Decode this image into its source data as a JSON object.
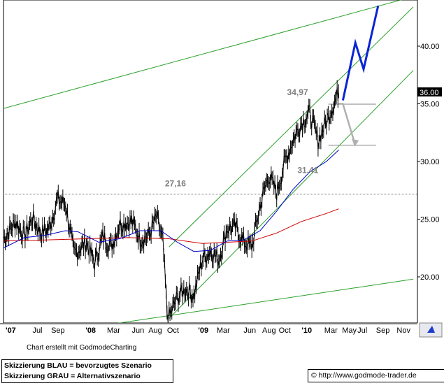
{
  "chart_data": {
    "type": "line",
    "x_tick_labels": [
      "'07",
      "Jul",
      "Sep",
      "'08",
      "Mar",
      "Jun",
      "Aug",
      "Oct",
      "'09",
      "Mar",
      "Jun",
      "Aug",
      "Oct",
      "'10",
      "Mar",
      "May",
      "Jul",
      "Sep",
      "Nov"
    ],
    "y_tick_labels": [
      "20.00",
      "25.00",
      "30.00",
      "35.00",
      "40.00"
    ],
    "ylim": [
      16,
      44
    ],
    "last_price_label": "36.00",
    "levels": [
      {
        "label": "34,97",
        "value": 34.97
      },
      {
        "label": "31,41",
        "value": 31.41
      },
      {
        "label": "27,16",
        "value": 27.16
      }
    ],
    "colors": {
      "price": "#000000",
      "ma_short": "#0000cc",
      "ma_long": "#cc0000",
      "channel": "#2ca02c",
      "scenario_blue": "#0a24d6",
      "scenario_grey": "#b0b0b0",
      "level_line": "#808080"
    },
    "price_keypoints": [
      {
        "x": 0,
        "y": 23.3
      },
      {
        "x": 0.03,
        "y": 24.8
      },
      {
        "x": 0.05,
        "y": 23.5
      },
      {
        "x": 0.07,
        "y": 25.1
      },
      {
        "x": 0.09,
        "y": 23.8
      },
      {
        "x": 0.11,
        "y": 24.2
      },
      {
        "x": 0.13,
        "y": 26.7
      },
      {
        "x": 0.15,
        "y": 26.3
      },
      {
        "x": 0.17,
        "y": 22.0
      },
      {
        "x": 0.2,
        "y": 23.0
      },
      {
        "x": 0.22,
        "y": 21.2
      },
      {
        "x": 0.24,
        "y": 23.5
      },
      {
        "x": 0.26,
        "y": 22.6
      },
      {
        "x": 0.28,
        "y": 24.6
      },
      {
        "x": 0.31,
        "y": 24.8
      },
      {
        "x": 0.33,
        "y": 23.3
      },
      {
        "x": 0.35,
        "y": 23.5
      },
      {
        "x": 0.37,
        "y": 25.2
      },
      {
        "x": 0.385,
        "y": 23.0
      },
      {
        "x": 0.395,
        "y": 17.0
      },
      {
        "x": 0.4,
        "y": 16.5
      },
      {
        "x": 0.42,
        "y": 18.2
      },
      {
        "x": 0.44,
        "y": 19.0
      },
      {
        "x": 0.46,
        "y": 18.4
      },
      {
        "x": 0.48,
        "y": 21.5
      },
      {
        "x": 0.5,
        "y": 22.3
      },
      {
        "x": 0.52,
        "y": 21.5
      },
      {
        "x": 0.54,
        "y": 24.2
      },
      {
        "x": 0.56,
        "y": 24.3
      },
      {
        "x": 0.58,
        "y": 23.0
      },
      {
        "x": 0.6,
        "y": 22.6
      },
      {
        "x": 0.62,
        "y": 26.2
      },
      {
        "x": 0.64,
        "y": 28.8
      },
      {
        "x": 0.66,
        "y": 27.3
      },
      {
        "x": 0.68,
        "y": 30.0
      },
      {
        "x": 0.7,
        "y": 31.9
      },
      {
        "x": 0.72,
        "y": 33.4
      },
      {
        "x": 0.74,
        "y": 34.2
      },
      {
        "x": 0.76,
        "y": 31.8
      },
      {
        "x": 0.78,
        "y": 33.5
      },
      {
        "x": 0.8,
        "y": 35.2
      },
      {
        "x": 0.81,
        "y": 36.1
      }
    ],
    "ma_short_keypoints": [
      {
        "x": 0,
        "y": 22.5
      },
      {
        "x": 0.05,
        "y": 23.4
      },
      {
        "x": 0.1,
        "y": 23.6
      },
      {
        "x": 0.15,
        "y": 24.0
      },
      {
        "x": 0.18,
        "y": 23.9
      },
      {
        "x": 0.23,
        "y": 23.0
      },
      {
        "x": 0.28,
        "y": 23.3
      },
      {
        "x": 0.33,
        "y": 24.0
      },
      {
        "x": 0.38,
        "y": 24.0
      },
      {
        "x": 0.42,
        "y": 23.0
      },
      {
        "x": 0.46,
        "y": 22.2
      },
      {
        "x": 0.5,
        "y": 22.3
      },
      {
        "x": 0.54,
        "y": 23.1
      },
      {
        "x": 0.58,
        "y": 23.2
      },
      {
        "x": 0.62,
        "y": 24.0
      },
      {
        "x": 0.66,
        "y": 25.7
      },
      {
        "x": 0.7,
        "y": 27.6
      },
      {
        "x": 0.74,
        "y": 29.1
      },
      {
        "x": 0.78,
        "y": 30.0
      },
      {
        "x": 0.81,
        "y": 31.0
      }
    ],
    "ma_long_keypoints": [
      {
        "x": 0,
        "y": 23.1
      },
      {
        "x": 0.1,
        "y": 23.2
      },
      {
        "x": 0.2,
        "y": 23.3
      },
      {
        "x": 0.3,
        "y": 23.4
      },
      {
        "x": 0.4,
        "y": 23.3
      },
      {
        "x": 0.48,
        "y": 22.9
      },
      {
        "x": 0.54,
        "y": 23.0
      },
      {
        "x": 0.6,
        "y": 23.1
      },
      {
        "x": 0.66,
        "y": 23.8
      },
      {
        "x": 0.72,
        "y": 24.8
      },
      {
        "x": 0.78,
        "y": 25.5
      },
      {
        "x": 0.81,
        "y": 25.9
      }
    ],
    "scenario_blue_keypoints": [
      {
        "x": 0.82,
        "y": 35.3
      },
      {
        "x": 0.85,
        "y": 40.3
      },
      {
        "x": 0.87,
        "y": 38.0
      },
      {
        "x": 0.905,
        "y": 43.5
      }
    ],
    "scenario_grey_keypoints": [
      {
        "x": 0.81,
        "y": 35.0
      },
      {
        "x": 0.82,
        "y": 35.0
      },
      {
        "x": 0.85,
        "y": 31.4
      }
    ],
    "channel_lines": [
      [
        {
          "x": 0.0,
          "y": 34.6
        },
        {
          "x": 0.99,
          "y": 44.3
        }
      ],
      [
        {
          "x": 0.0,
          "y": 14.5
        },
        {
          "x": 0.99,
          "y": 19.8
        }
      ],
      [
        {
          "x": 0.4,
          "y": 22.6
        },
        {
          "x": 0.99,
          "y": 43.4
        }
      ],
      [
        {
          "x": 0.4,
          "y": 16.4
        },
        {
          "x": 0.99,
          "y": 37.9
        }
      ]
    ]
  },
  "footer": {
    "credit": "Chart erstellt mit GodmodeCharting",
    "legend_line1": "Skizzierung BLAU = bevorzugtes Szenario",
    "legend_line2": "Skizzierung GRAU = Alternativszenario",
    "url": "© http://www.godmode-trader.de"
  }
}
